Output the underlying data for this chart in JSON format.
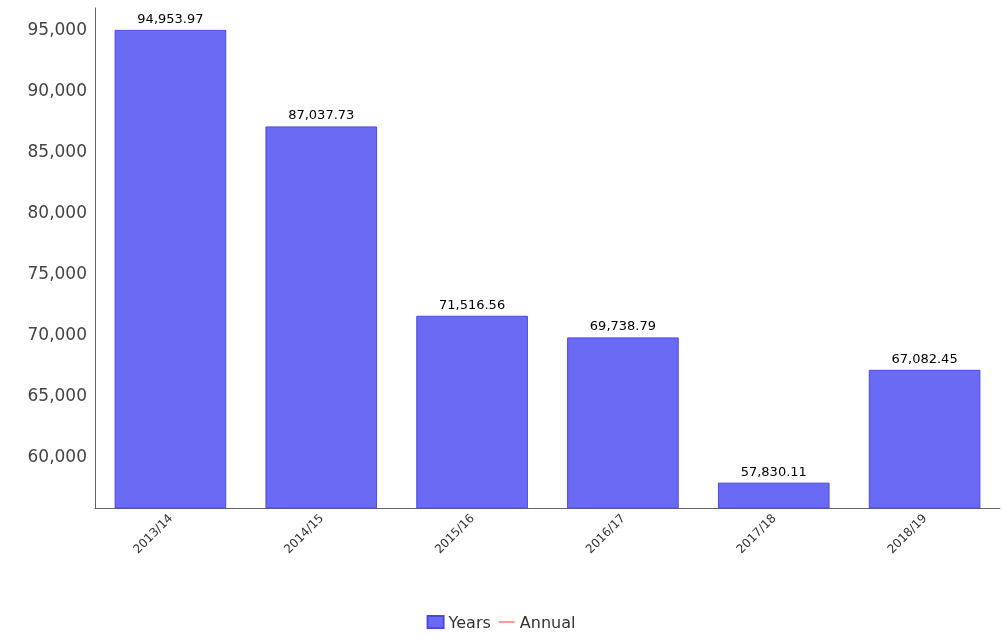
{
  "chart_data": {
    "type": "bar",
    "categories": [
      "2013/14",
      "2014/15",
      "2015/16",
      "2016/17",
      "2017/18",
      "2018/19"
    ],
    "series": [
      {
        "name": "Years",
        "color": "#6a6af5",
        "values": [
          94953.97,
          87037.73,
          71516.56,
          69738.79,
          57830.11,
          67082.45
        ],
        "value_labels": [
          "94,953.97",
          "87,037.73",
          "71,516.56",
          "69,738.79",
          "57,830.11",
          "67,082.45"
        ]
      },
      {
        "name": "Annual",
        "type": "line",
        "color": "#ff0000",
        "values": [
          null,
          null,
          null,
          null,
          null,
          null
        ]
      }
    ],
    "ylim": [
      55750,
      96750
    ],
    "yticks": [
      {
        "value": 60000,
        "label": "60,000"
      },
      {
        "value": 65000,
        "label": "65,000"
      },
      {
        "value": 70000,
        "label": "70,000"
      },
      {
        "value": 75000,
        "label": "75,000"
      },
      {
        "value": 80000,
        "label": "80,000"
      },
      {
        "value": 85000,
        "label": "85,000"
      },
      {
        "value": 90000,
        "label": "90,000"
      },
      {
        "value": 95000,
        "label": "95,000"
      }
    ],
    "grid": false,
    "legend": "bottom"
  }
}
